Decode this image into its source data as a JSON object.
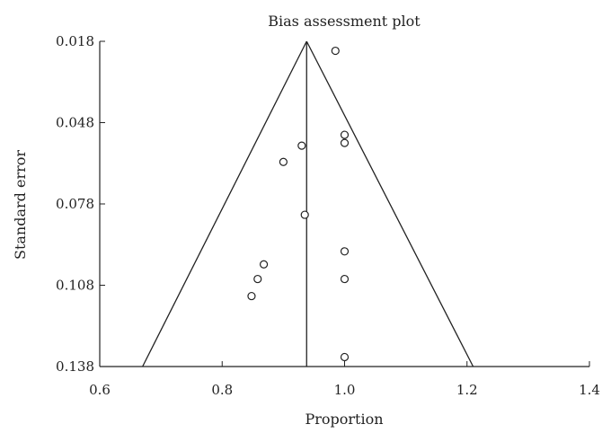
{
  "chart_data": {
    "type": "scatter",
    "title": "Bias assessment plot",
    "xlabel": "Proportion",
    "ylabel": "Standard error",
    "xlim": [
      0.6,
      1.4
    ],
    "ylim": [
      0.018,
      0.138
    ],
    "y_reversed": true,
    "x_ticks": [
      "0.6",
      "0.8",
      "1.0",
      "1.2",
      "1.4"
    ],
    "y_ticks": [
      "0.018",
      "0.048",
      "0.078",
      "0.108",
      "0.138"
    ],
    "pooled_estimate": 0.938,
    "funnel": {
      "apex": [
        0.938,
        0.018
      ],
      "base_left": [
        0.67,
        0.138
      ],
      "base_right": [
        1.21,
        0.138
      ]
    },
    "points": [
      {
        "x": 0.985,
        "y": 0.0215
      },
      {
        "x": 1.0,
        "y": 0.0525
      },
      {
        "x": 1.0,
        "y": 0.0555
      },
      {
        "x": 0.93,
        "y": 0.0565
      },
      {
        "x": 0.9,
        "y": 0.0625
      },
      {
        "x": 0.935,
        "y": 0.082
      },
      {
        "x": 1.0,
        "y": 0.0955
      },
      {
        "x": 0.868,
        "y": 0.1003
      },
      {
        "x": 0.858,
        "y": 0.1057
      },
      {
        "x": 1.0,
        "y": 0.1057
      },
      {
        "x": 0.848,
        "y": 0.112
      },
      {
        "x": 1.0,
        "y": 0.1345
      }
    ],
    "grid": false,
    "legend": "none"
  }
}
